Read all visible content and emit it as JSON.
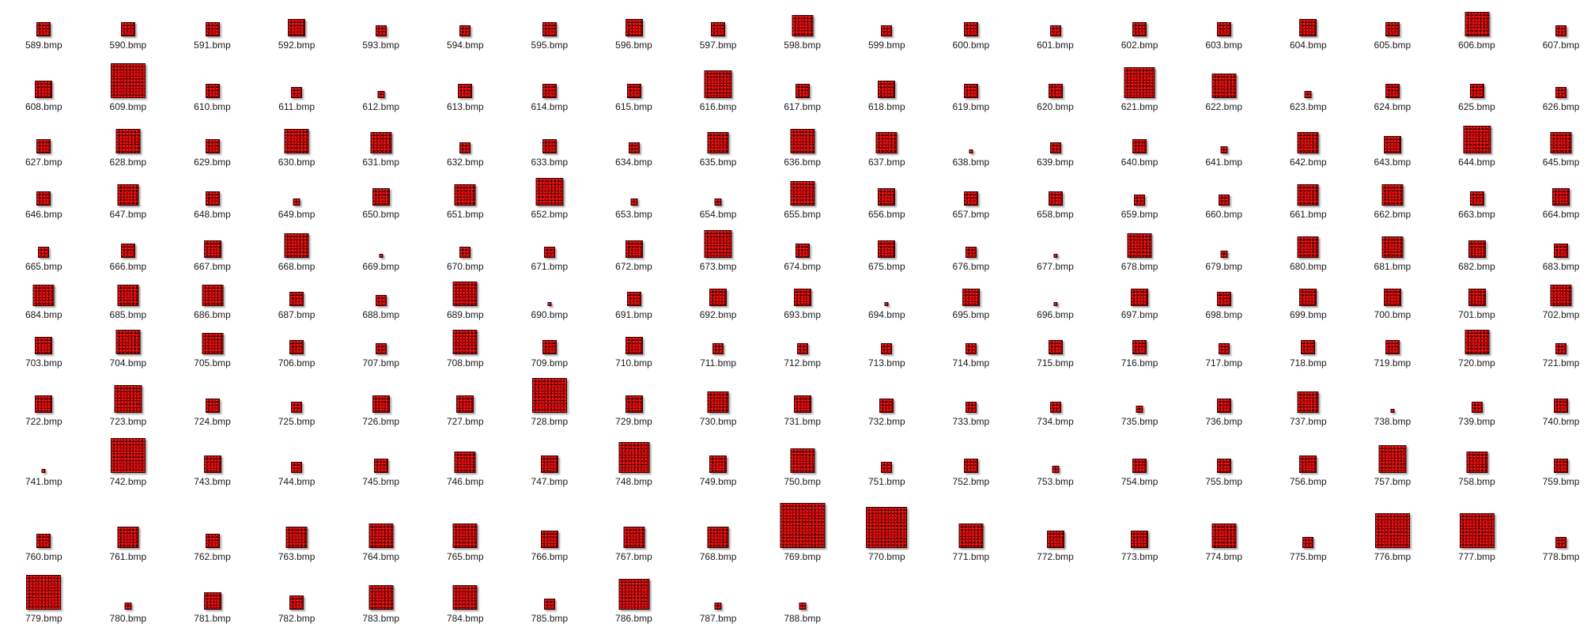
{
  "thumbnail_color": "#8b0000",
  "files": [
    {
      "name": "589.bmp",
      "size_level": 3
    },
    {
      "name": "590.bmp",
      "size_level": 3
    },
    {
      "name": "591.bmp",
      "size_level": 3
    },
    {
      "name": "592.bmp",
      "size_level": 4
    },
    {
      "name": "593.bmp",
      "size_level": 2
    },
    {
      "name": "594.bmp",
      "size_level": 2
    },
    {
      "name": "595.bmp",
      "size_level": 3
    },
    {
      "name": "596.bmp",
      "size_level": 4
    },
    {
      "name": "597.bmp",
      "size_level": 3
    },
    {
      "name": "598.bmp",
      "size_level": 5
    },
    {
      "name": "599.bmp",
      "size_level": 2
    },
    {
      "name": "600.bmp",
      "size_level": 3
    },
    {
      "name": "601.bmp",
      "size_level": 2
    },
    {
      "name": "602.bmp",
      "size_level": 3
    },
    {
      "name": "603.bmp",
      "size_level": 3
    },
    {
      "name": "604.bmp",
      "size_level": 4
    },
    {
      "name": "605.bmp",
      "size_level": 3
    },
    {
      "name": "606.bmp",
      "size_level": 6
    },
    {
      "name": "607.bmp",
      "size_level": 2
    },
    {
      "name": "608.bmp",
      "size_level": 4
    },
    {
      "name": "609.bmp",
      "size_level": 9
    },
    {
      "name": "610.bmp",
      "size_level": 3
    },
    {
      "name": "611.bmp",
      "size_level": 2
    },
    {
      "name": "612.bmp",
      "size_level": 1
    },
    {
      "name": "613.bmp",
      "size_level": 3
    },
    {
      "name": "614.bmp",
      "size_level": 3
    },
    {
      "name": "615.bmp",
      "size_level": 3
    },
    {
      "name": "616.bmp",
      "size_level": 7
    },
    {
      "name": "617.bmp",
      "size_level": 3
    },
    {
      "name": "618.bmp",
      "size_level": 4
    },
    {
      "name": "619.bmp",
      "size_level": 3
    },
    {
      "name": "620.bmp",
      "size_level": 3
    },
    {
      "name": "621.bmp",
      "size_level": 8
    },
    {
      "name": "622.bmp",
      "size_level": 6
    },
    {
      "name": "623.bmp",
      "size_level": 1
    },
    {
      "name": "624.bmp",
      "size_level": 3
    },
    {
      "name": "625.bmp",
      "size_level": 3
    },
    {
      "name": "626.bmp",
      "size_level": 2
    },
    {
      "name": "627.bmp",
      "size_level": 3
    },
    {
      "name": "628.bmp",
      "size_level": 6
    },
    {
      "name": "629.bmp",
      "size_level": 3
    },
    {
      "name": "630.bmp",
      "size_level": 6
    },
    {
      "name": "631.bmp",
      "size_level": 5
    },
    {
      "name": "632.bmp",
      "size_level": 2
    },
    {
      "name": "633.bmp",
      "size_level": 3
    },
    {
      "name": "634.bmp",
      "size_level": 2
    },
    {
      "name": "635.bmp",
      "size_level": 5
    },
    {
      "name": "636.bmp",
      "size_level": 6
    },
    {
      "name": "637.bmp",
      "size_level": 5
    },
    {
      "name": "638.bmp",
      "size_level": 0
    },
    {
      "name": "639.bmp",
      "size_level": 2
    },
    {
      "name": "640.bmp",
      "size_level": 3
    },
    {
      "name": "641.bmp",
      "size_level": 1
    },
    {
      "name": "642.bmp",
      "size_level": 5
    },
    {
      "name": "643.bmp",
      "size_level": 4
    },
    {
      "name": "644.bmp",
      "size_level": 7
    },
    {
      "name": "645.bmp",
      "size_level": 5
    },
    {
      "name": "646.bmp",
      "size_level": 3
    },
    {
      "name": "647.bmp",
      "size_level": 5
    },
    {
      "name": "648.bmp",
      "size_level": 3
    },
    {
      "name": "649.bmp",
      "size_level": 1
    },
    {
      "name": "650.bmp",
      "size_level": 4
    },
    {
      "name": "651.bmp",
      "size_level": 5
    },
    {
      "name": "652.bmp",
      "size_level": 7
    },
    {
      "name": "653.bmp",
      "size_level": 1
    },
    {
      "name": "654.bmp",
      "size_level": 1
    },
    {
      "name": "655.bmp",
      "size_level": 6
    },
    {
      "name": "656.bmp",
      "size_level": 4
    },
    {
      "name": "657.bmp",
      "size_level": 3
    },
    {
      "name": "658.bmp",
      "size_level": 3
    },
    {
      "name": "659.bmp",
      "size_level": 2
    },
    {
      "name": "660.bmp",
      "size_level": 2
    },
    {
      "name": "661.bmp",
      "size_level": 5
    },
    {
      "name": "662.bmp",
      "size_level": 5
    },
    {
      "name": "663.bmp",
      "size_level": 3
    },
    {
      "name": "664.bmp",
      "size_level": 4
    },
    {
      "name": "665.bmp",
      "size_level": 2
    },
    {
      "name": "666.bmp",
      "size_level": 3
    },
    {
      "name": "667.bmp",
      "size_level": 4
    },
    {
      "name": "668.bmp",
      "size_level": 6
    },
    {
      "name": "669.bmp",
      "size_level": 0
    },
    {
      "name": "670.bmp",
      "size_level": 2
    },
    {
      "name": "671.bmp",
      "size_level": 2
    },
    {
      "name": "672.bmp",
      "size_level": 4
    },
    {
      "name": "673.bmp",
      "size_level": 7
    },
    {
      "name": "674.bmp",
      "size_level": 3
    },
    {
      "name": "675.bmp",
      "size_level": 4
    },
    {
      "name": "676.bmp",
      "size_level": 2
    },
    {
      "name": "677.bmp",
      "size_level": 0
    },
    {
      "name": "678.bmp",
      "size_level": 6
    },
    {
      "name": "679.bmp",
      "size_level": 1
    },
    {
      "name": "680.bmp",
      "size_level": 5
    },
    {
      "name": "681.bmp",
      "size_level": 5
    },
    {
      "name": "682.bmp",
      "size_level": 4
    },
    {
      "name": "683.bmp",
      "size_level": 3
    },
    {
      "name": "684.bmp",
      "size_level": 5
    },
    {
      "name": "685.bmp",
      "size_level": 5
    },
    {
      "name": "686.bmp",
      "size_level": 5
    },
    {
      "name": "687.bmp",
      "size_level": 3
    },
    {
      "name": "688.bmp",
      "size_level": 2
    },
    {
      "name": "689.bmp",
      "size_level": 6
    },
    {
      "name": "690.bmp",
      "size_level": 0
    },
    {
      "name": "691.bmp",
      "size_level": 3
    },
    {
      "name": "692.bmp",
      "size_level": 4
    },
    {
      "name": "693.bmp",
      "size_level": 4
    },
    {
      "name": "694.bmp",
      "size_level": 0
    },
    {
      "name": "695.bmp",
      "size_level": 4
    },
    {
      "name": "696.bmp",
      "size_level": 0
    },
    {
      "name": "697.bmp",
      "size_level": 4
    },
    {
      "name": "698.bmp",
      "size_level": 3
    },
    {
      "name": "699.bmp",
      "size_level": 4
    },
    {
      "name": "700.bmp",
      "size_level": 4
    },
    {
      "name": "701.bmp",
      "size_level": 4
    },
    {
      "name": "702.bmp",
      "size_level": 5
    },
    {
      "name": "703.bmp",
      "size_level": 4
    },
    {
      "name": "704.bmp",
      "size_level": 6
    },
    {
      "name": "705.bmp",
      "size_level": 5
    },
    {
      "name": "706.bmp",
      "size_level": 3
    },
    {
      "name": "707.bmp",
      "size_level": 2
    },
    {
      "name": "708.bmp",
      "size_level": 6
    },
    {
      "name": "709.bmp",
      "size_level": 3
    },
    {
      "name": "710.bmp",
      "size_level": 4
    },
    {
      "name": "711.bmp",
      "size_level": 2
    },
    {
      "name": "712.bmp",
      "size_level": 2
    },
    {
      "name": "713.bmp",
      "size_level": 2
    },
    {
      "name": "714.bmp",
      "size_level": 2
    },
    {
      "name": "715.bmp",
      "size_level": 3
    },
    {
      "name": "716.bmp",
      "size_level": 3
    },
    {
      "name": "717.bmp",
      "size_level": 2
    },
    {
      "name": "718.bmp",
      "size_level": 3
    },
    {
      "name": "719.bmp",
      "size_level": 3
    },
    {
      "name": "720.bmp",
      "size_level": 6
    },
    {
      "name": "721.bmp",
      "size_level": 2
    },
    {
      "name": "722.bmp",
      "size_level": 4
    },
    {
      "name": "723.bmp",
      "size_level": 7
    },
    {
      "name": "724.bmp",
      "size_level": 3
    },
    {
      "name": "725.bmp",
      "size_level": 2
    },
    {
      "name": "726.bmp",
      "size_level": 4
    },
    {
      "name": "727.bmp",
      "size_level": 4
    },
    {
      "name": "728.bmp",
      "size_level": 9
    },
    {
      "name": "729.bmp",
      "size_level": 4
    },
    {
      "name": "730.bmp",
      "size_level": 5
    },
    {
      "name": "731.bmp",
      "size_level": 4
    },
    {
      "name": "732.bmp",
      "size_level": 3
    },
    {
      "name": "733.bmp",
      "size_level": 2
    },
    {
      "name": "734.bmp",
      "size_level": 2
    },
    {
      "name": "735.bmp",
      "size_level": 1
    },
    {
      "name": "736.bmp",
      "size_level": 3
    },
    {
      "name": "737.bmp",
      "size_level": 5
    },
    {
      "name": "738.bmp",
      "size_level": 0
    },
    {
      "name": "739.bmp",
      "size_level": 2
    },
    {
      "name": "740.bmp",
      "size_level": 3
    },
    {
      "name": "741.bmp",
      "size_level": 0
    },
    {
      "name": "742.bmp",
      "size_level": 9
    },
    {
      "name": "743.bmp",
      "size_level": 4
    },
    {
      "name": "744.bmp",
      "size_level": 2
    },
    {
      "name": "745.bmp",
      "size_level": 3
    },
    {
      "name": "746.bmp",
      "size_level": 5
    },
    {
      "name": "747.bmp",
      "size_level": 4
    },
    {
      "name": "748.bmp",
      "size_level": 8
    },
    {
      "name": "749.bmp",
      "size_level": 4
    },
    {
      "name": "750.bmp",
      "size_level": 6
    },
    {
      "name": "751.bmp",
      "size_level": 2
    },
    {
      "name": "752.bmp",
      "size_level": 3
    },
    {
      "name": "753.bmp",
      "size_level": 1
    },
    {
      "name": "754.bmp",
      "size_level": 3
    },
    {
      "name": "755.bmp",
      "size_level": 3
    },
    {
      "name": "756.bmp",
      "size_level": 4
    },
    {
      "name": "757.bmp",
      "size_level": 7
    },
    {
      "name": "758.bmp",
      "size_level": 5
    },
    {
      "name": "759.bmp",
      "size_level": 3
    },
    {
      "name": "760.bmp",
      "size_level": 3
    },
    {
      "name": "761.bmp",
      "size_level": 5
    },
    {
      "name": "762.bmp",
      "size_level": 3
    },
    {
      "name": "763.bmp",
      "size_level": 5
    },
    {
      "name": "764.bmp",
      "size_level": 6
    },
    {
      "name": "765.bmp",
      "size_level": 6
    },
    {
      "name": "766.bmp",
      "size_level": 4
    },
    {
      "name": "767.bmp",
      "size_level": 5
    },
    {
      "name": "768.bmp",
      "size_level": 5
    },
    {
      "name": "769.bmp",
      "size_level": 12
    },
    {
      "name": "770.bmp",
      "size_level": 11
    },
    {
      "name": "771.bmp",
      "size_level": 6
    },
    {
      "name": "772.bmp",
      "size_level": 4
    },
    {
      "name": "773.bmp",
      "size_level": 4
    },
    {
      "name": "774.bmp",
      "size_level": 6
    },
    {
      "name": "775.bmp",
      "size_level": 2
    },
    {
      "name": "776.bmp",
      "size_level": 9
    },
    {
      "name": "777.bmp",
      "size_level": 9
    },
    {
      "name": "778.bmp",
      "size_level": 2
    },
    {
      "name": "779.bmp",
      "size_level": 9
    },
    {
      "name": "780.bmp",
      "size_level": 1
    },
    {
      "name": "781.bmp",
      "size_level": 4
    },
    {
      "name": "782.bmp",
      "size_level": 3
    },
    {
      "name": "783.bmp",
      "size_level": 6
    },
    {
      "name": "784.bmp",
      "size_level": 6
    },
    {
      "name": "785.bmp",
      "size_level": 2
    },
    {
      "name": "786.bmp",
      "size_level": 8
    },
    {
      "name": "787.bmp",
      "size_level": 1
    },
    {
      "name": "788.bmp",
      "size_level": 1
    }
  ]
}
